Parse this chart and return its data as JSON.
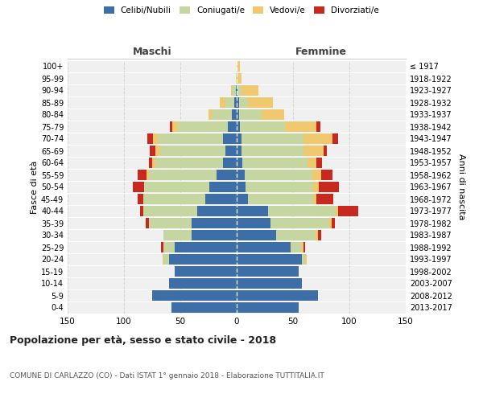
{
  "age_groups": [
    "0-4",
    "5-9",
    "10-14",
    "15-19",
    "20-24",
    "25-29",
    "30-34",
    "35-39",
    "40-44",
    "45-49",
    "50-54",
    "55-59",
    "60-64",
    "65-69",
    "70-74",
    "75-79",
    "80-84",
    "85-89",
    "90-94",
    "95-99",
    "100+"
  ],
  "birth_years": [
    "2013-2017",
    "2008-2012",
    "2003-2007",
    "1998-2002",
    "1993-1997",
    "1988-1992",
    "1983-1987",
    "1978-1982",
    "1973-1977",
    "1968-1972",
    "1963-1967",
    "1958-1962",
    "1953-1957",
    "1948-1952",
    "1943-1947",
    "1938-1942",
    "1933-1937",
    "1928-1932",
    "1923-1927",
    "1918-1922",
    "≤ 1917"
  ],
  "colors": {
    "celibe": "#3d6ea8",
    "coniugato": "#c5d6a0",
    "vedovo": "#f0c96e",
    "divorziato": "#c8281e"
  },
  "males": {
    "celibe": [
      58,
      75,
      60,
      55,
      60,
      55,
      40,
      40,
      35,
      28,
      24,
      18,
      12,
      10,
      12,
      8,
      4,
      2,
      1,
      0,
      0
    ],
    "coniugato": [
      0,
      0,
      0,
      0,
      5,
      10,
      25,
      38,
      48,
      55,
      58,
      60,
      60,
      58,
      58,
      44,
      18,
      8,
      3,
      1,
      0
    ],
    "vedovo": [
      0,
      0,
      0,
      0,
      1,
      0,
      0,
      0,
      0,
      0,
      0,
      2,
      3,
      4,
      4,
      5,
      3,
      5,
      1,
      0,
      0
    ],
    "divorziato": [
      0,
      0,
      0,
      0,
      0,
      2,
      0,
      3,
      3,
      5,
      10,
      8,
      3,
      5,
      5,
      2,
      0,
      0,
      0,
      0,
      0
    ]
  },
  "females": {
    "nubile": [
      55,
      72,
      58,
      55,
      58,
      48,
      35,
      30,
      28,
      10,
      8,
      7,
      5,
      4,
      4,
      3,
      2,
      2,
      1,
      0,
      0
    ],
    "coniugata": [
      0,
      0,
      0,
      0,
      3,
      10,
      35,
      52,
      60,
      58,
      60,
      60,
      58,
      55,
      55,
      40,
      20,
      8,
      3,
      0,
      1
    ],
    "vedova": [
      0,
      0,
      0,
      0,
      1,
      1,
      2,
      2,
      2,
      3,
      5,
      8,
      8,
      18,
      26,
      28,
      20,
      22,
      15,
      4,
      2
    ],
    "divorziata": [
      0,
      0,
      0,
      0,
      0,
      2,
      3,
      3,
      18,
      15,
      18,
      10,
      5,
      3,
      5,
      3,
      0,
      0,
      0,
      0,
      0
    ]
  },
  "xlim": 150,
  "title": "Popolazione per età, sesso e stato civile - 2018",
  "subtitle": "COMUNE DI CARLAZZO (CO) - Dati ISTAT 1° gennaio 2018 - Elaborazione TUTTITALIA.IT",
  "ylabel_left": "Fasce di età",
  "ylabel_right": "Anni di nascita",
  "xlabel_left": "Maschi",
  "xlabel_right": "Femmine",
  "bg_color": "#f0f0f0",
  "grid_color": "#cccccc"
}
